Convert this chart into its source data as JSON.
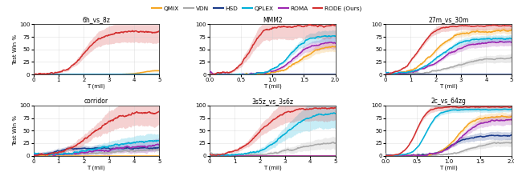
{
  "subplots": [
    {
      "title": "6h_vs_8z",
      "xlim": [
        0,
        5
      ],
      "xticks": [
        0,
        1,
        2,
        3,
        4,
        5
      ]
    },
    {
      "title": "MMM2",
      "xlim": [
        0.0,
        2.0
      ],
      "xticks": [
        0.0,
        0.5,
        1.0,
        1.5,
        2.0
      ]
    },
    {
      "title": "27m_vs_30m",
      "xlim": [
        0,
        5
      ],
      "xticks": [
        0,
        1,
        2,
        3,
        4,
        5
      ]
    },
    {
      "title": "corridor",
      "xlim": [
        0,
        5
      ],
      "xticks": [
        0,
        1,
        2,
        3,
        4,
        5
      ]
    },
    {
      "title": "3s5z_vs_3s6z",
      "xlim": [
        0,
        5
      ],
      "xticks": [
        0,
        1,
        2,
        3,
        4,
        5
      ]
    },
    {
      "title": "2c_vs_64zg",
      "xlim": [
        0.0,
        2.0
      ],
      "xticks": [
        0.0,
        0.5,
        1.0,
        1.5,
        2.0
      ]
    }
  ],
  "ylim": [
    0,
    100
  ],
  "yticks": [
    0,
    25,
    50,
    75,
    100
  ],
  "ylabel": "Test Win %",
  "xlabel": "T (mil)",
  "algorithms": [
    "QMIX",
    "VDN",
    "HSD",
    "QPLEX",
    "ROMA",
    "RODE (Ours)"
  ],
  "colors": {
    "QMIX": "#f5a623",
    "VDN": "#aaaaaa",
    "HSD": "#1a3a8a",
    "QPLEX": "#00b0d8",
    "ROMA": "#9c27b0",
    "RODE (Ours)": "#d32f2f"
  }
}
